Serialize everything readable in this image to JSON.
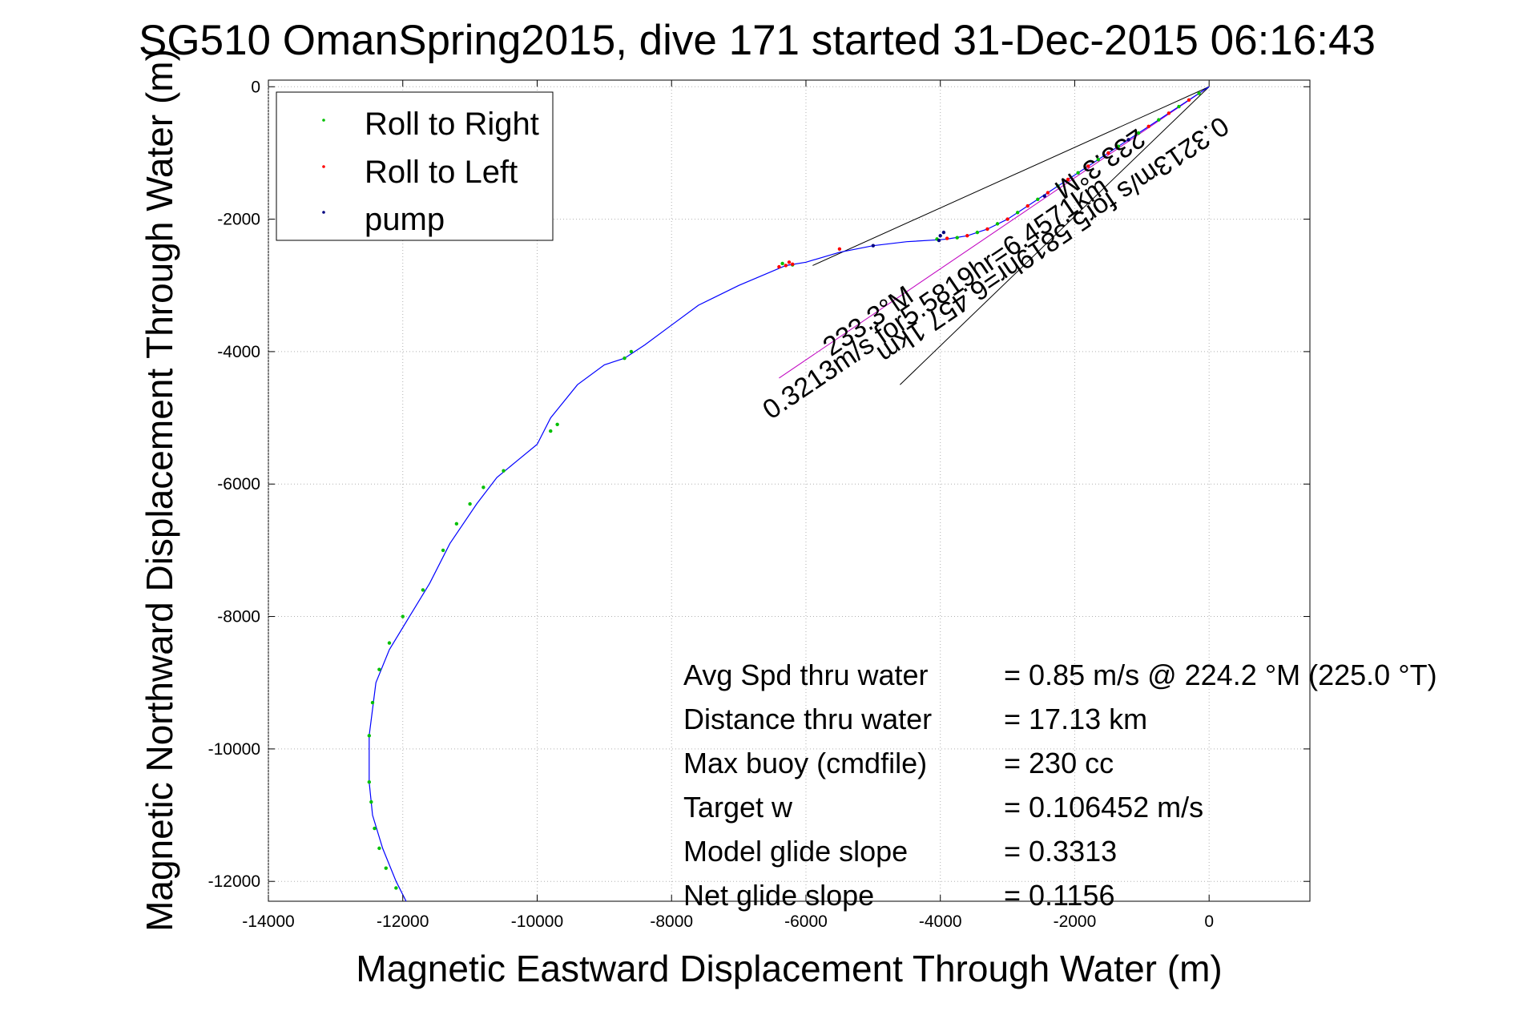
{
  "chart_data": {
    "type": "line",
    "title": "SG510 OmanSpring2015, dive 171 started 31-Dec-2015 06:16:43",
    "xlabel": "Magnetic Eastward Displacement Through Water (m)",
    "ylabel": "Magnetic Northward Displacement Through Water (m)",
    "xlim": [
      -14000,
      1500
    ],
    "ylim": [
      -12300,
      100
    ],
    "xticks": [
      -14000,
      -12000,
      -10000,
      -8000,
      -6000,
      -4000,
      -2000,
      0
    ],
    "xtick_labels": [
      "-14000",
      "-12000",
      "-10000",
      "-8000",
      "-6000",
      "-4000",
      "-2000",
      "0"
    ],
    "yticks": [
      0,
      -2000,
      -4000,
      -6000,
      -8000,
      -10000,
      -12000
    ],
    "ytick_labels": [
      "0",
      "-2000",
      "-4000",
      "-6000",
      "-8000",
      "-10000",
      "-12000"
    ],
    "grid": true,
    "legend_position": "top-left",
    "colors": {
      "track": "#0000ff",
      "roll_right": "#00c000",
      "roll_left": "#ff0000",
      "pump": "#000080",
      "bearing": "#c000c0",
      "cone": "#000000"
    },
    "legend": [
      {
        "label": "Roll to Right",
        "color": "#00c000"
      },
      {
        "label": "Roll to Left",
        "color": "#ff0000"
      },
      {
        "label": "pump",
        "color": "#000080"
      }
    ],
    "series": [
      {
        "name": "track",
        "x": [
          0,
          -300,
          -600,
          -900,
          -1200,
          -1500,
          -1800,
          -2100,
          -2400,
          -2700,
          -3000,
          -3300,
          -3600,
          -3900,
          -4000,
          -4500,
          -5000,
          -5500,
          -6000,
          -6300,
          -7000,
          -7600,
          -8000,
          -8400,
          -8700,
          -9000,
          -9400,
          -9800,
          -10000,
          -10300,
          -10600,
          -10900,
          -11300,
          -11600,
          -11900,
          -12200,
          -12400,
          -12500,
          -12500,
          -12450,
          -12300,
          -12100,
          -11950
        ],
        "y": [
          0,
          -200,
          -400,
          -600,
          -800,
          -1000,
          -1200,
          -1400,
          -1600,
          -1800,
          -2000,
          -2150,
          -2250,
          -2300,
          -2310,
          -2340,
          -2400,
          -2500,
          -2650,
          -2700,
          -3000,
          -3300,
          -3600,
          -3900,
          -4100,
          -4200,
          -4500,
          -5000,
          -5400,
          -5650,
          -5900,
          -6300,
          -6900,
          -7500,
          -8000,
          -8500,
          -9000,
          -9800,
          -10500,
          -11000,
          -11500,
          -12000,
          -12300
        ]
      }
    ],
    "markers": {
      "roll_right": {
        "x": [
          -150,
          -450,
          -750,
          -1050,
          -1350,
          -1650,
          -1950,
          -2250,
          -2550,
          -2850,
          -3150,
          -3450,
          -3750,
          -4050,
          -6200,
          -6350,
          -8700,
          -8600,
          -9800,
          -9700,
          -10500,
          -10800,
          -11000,
          -11200,
          -11400,
          -11700,
          -12000,
          -12200,
          -12350,
          -12450,
          -12500,
          -12500,
          -12470,
          -12420,
          -12350,
          -12250,
          -12100
        ],
        "y": [
          -100,
          -300,
          -500,
          -700,
          -900,
          -1100,
          -1300,
          -1500,
          -1700,
          -1900,
          -2070,
          -2200,
          -2280,
          -2300,
          -2690,
          -2670,
          -4100,
          -4000,
          -5200,
          -5100,
          -5800,
          -6050,
          -6300,
          -6600,
          -7000,
          -7600,
          -8000,
          -8400,
          -8800,
          -9300,
          -9800,
          -10500,
          -10800,
          -11200,
          -11500,
          -11800,
          -12100
        ]
      },
      "roll_left": {
        "x": [
          -300,
          -600,
          -900,
          -1200,
          -1500,
          -1800,
          -2100,
          -2400,
          -2700,
          -3000,
          -3300,
          -3600,
          -3900,
          -6250,
          -6300,
          -6400,
          -6200,
          -5500
        ],
        "y": [
          -200,
          -400,
          -600,
          -800,
          -1000,
          -1200,
          -1400,
          -1600,
          -1800,
          -2000,
          -2150,
          -2250,
          -2290,
          -2650,
          -2700,
          -2720,
          -2680,
          -2450
        ]
      },
      "pump": {
        "x": [
          -4000,
          -4020,
          -3950,
          -2450,
          -1200,
          -5000
        ],
        "y": [
          -2250,
          -2320,
          -2200,
          -1650,
          -800,
          -2400
        ]
      }
    },
    "bearing_line": {
      "x": [
        0,
        -6400
      ],
      "y": [
        0,
        -4400
      ]
    },
    "cone_lines": [
      {
        "x": [
          0,
          -5900
        ],
        "y": [
          0,
          -2700
        ]
      },
      {
        "x": [
          0,
          -4600
        ],
        "y": [
          0,
          -4500
        ]
      }
    ],
    "annotations": {
      "bearing_top": "233.3°M",
      "bearing_mid": "0.3213m/s for5.5819hr=6.457 1km",
      "bearing_bottom": "233.3°M",
      "bearing_alt": "0.3213m/s for5.5819hr=6.4571km"
    },
    "stats": [
      {
        "label": "Avg Spd thru water",
        "value": "=  0.85 m/s @ 224.2 °M (225.0 °T)"
      },
      {
        "label": "Distance thru water",
        "value": "= 17.13 km"
      },
      {
        "label": "Max buoy (cmdfile)",
        "value": "= 230 cc"
      },
      {
        "label": "Target w",
        "value": "= 0.106452 m/s"
      },
      {
        "label": "Model glide slope",
        "value": "= 0.3313"
      },
      {
        "label": "Net glide slope",
        "value": "= 0.1156"
      }
    ]
  }
}
